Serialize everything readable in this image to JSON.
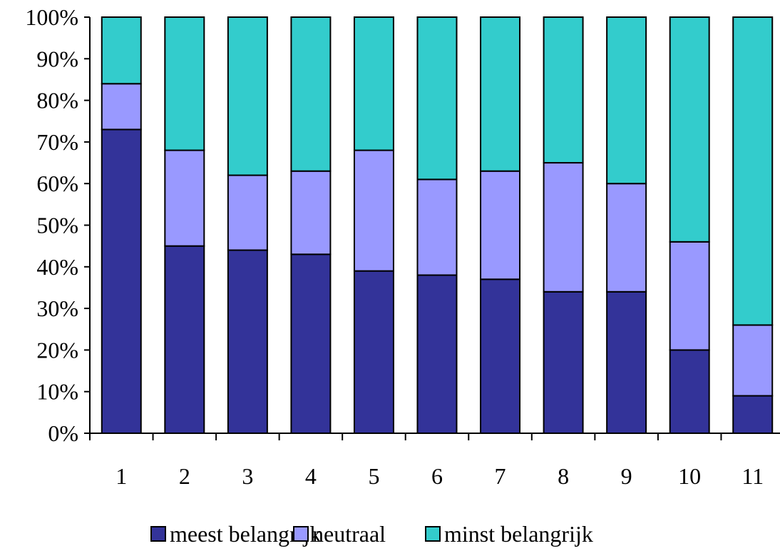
{
  "chart_data": {
    "type": "bar",
    "stacked": true,
    "categories": [
      "1",
      "2",
      "3",
      "4",
      "5",
      "6",
      "7",
      "8",
      "9",
      "10",
      "11"
    ],
    "series": [
      {
        "name": "meest belangrijk",
        "color": "#333399",
        "values": [
          73,
          45,
          44,
          43,
          39,
          38,
          37,
          34,
          34,
          20,
          9
        ]
      },
      {
        "name": "neutraal",
        "color": "#9999FF",
        "values": [
          11,
          23,
          18,
          20,
          29,
          23,
          26,
          31,
          26,
          26,
          17
        ]
      },
      {
        "name": "minst belangrijk",
        "color": "#33CCCC",
        "values": [
          16,
          32,
          38,
          37,
          32,
          39,
          37,
          35,
          40,
          54,
          74
        ]
      }
    ],
    "ylim": [
      0,
      100
    ],
    "yticks": [
      "0%",
      "10%",
      "20%",
      "30%",
      "40%",
      "50%",
      "60%",
      "70%",
      "80%",
      "90%",
      "100%"
    ],
    "title": "",
    "xlabel": "",
    "ylabel": "",
    "grid": false,
    "legend": "bottom"
  }
}
